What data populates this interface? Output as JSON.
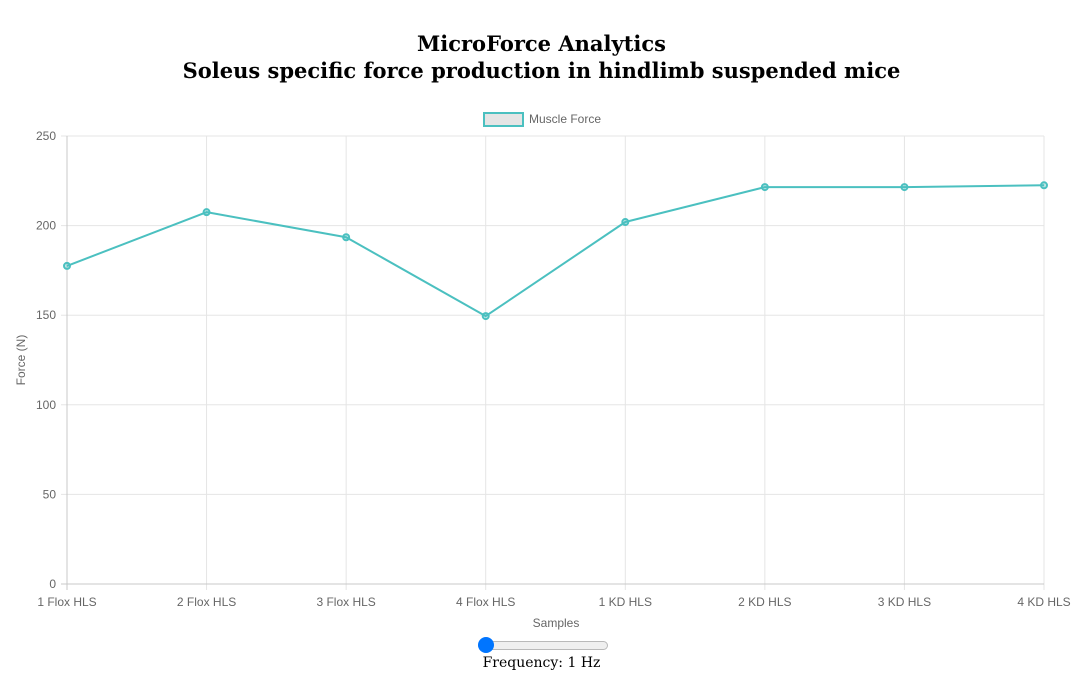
{
  "header": {
    "title": "MicroForce Analytics",
    "subtitle": "Soleus specific force production in hindlimb suspended mice"
  },
  "chart_data": {
    "type": "line",
    "categories": [
      "1 Flox HLS",
      "2 Flox HLS",
      "3 Flox HLS",
      "4 Flox HLS",
      "1 KD HLS",
      "2 KD HLS",
      "3 KD HLS",
      "4 KD HLS"
    ],
    "series": [
      {
        "name": "Muscle Force",
        "values": [
          177.5,
          207.5,
          193.5,
          149.5,
          202,
          221.5,
          221.5,
          222.5
        ],
        "color": "#4bc0c0"
      }
    ],
    "xlabel": "Samples",
    "ylabel": "Force (N)",
    "ylim": [
      0,
      250
    ],
    "yticks": [
      0,
      50,
      100,
      150,
      200,
      250
    ],
    "grid": true,
    "legend": "top-center"
  },
  "controls": {
    "frequency_label": "Frequency: 1 Hz",
    "frequency_value": 1
  },
  "colors": {
    "series": "#4bc0c0",
    "legend_fill": "#e5e5e5",
    "grid": "#e5e5e5",
    "tick_text": "#666666",
    "slider_thumb": "#0075ff"
  }
}
